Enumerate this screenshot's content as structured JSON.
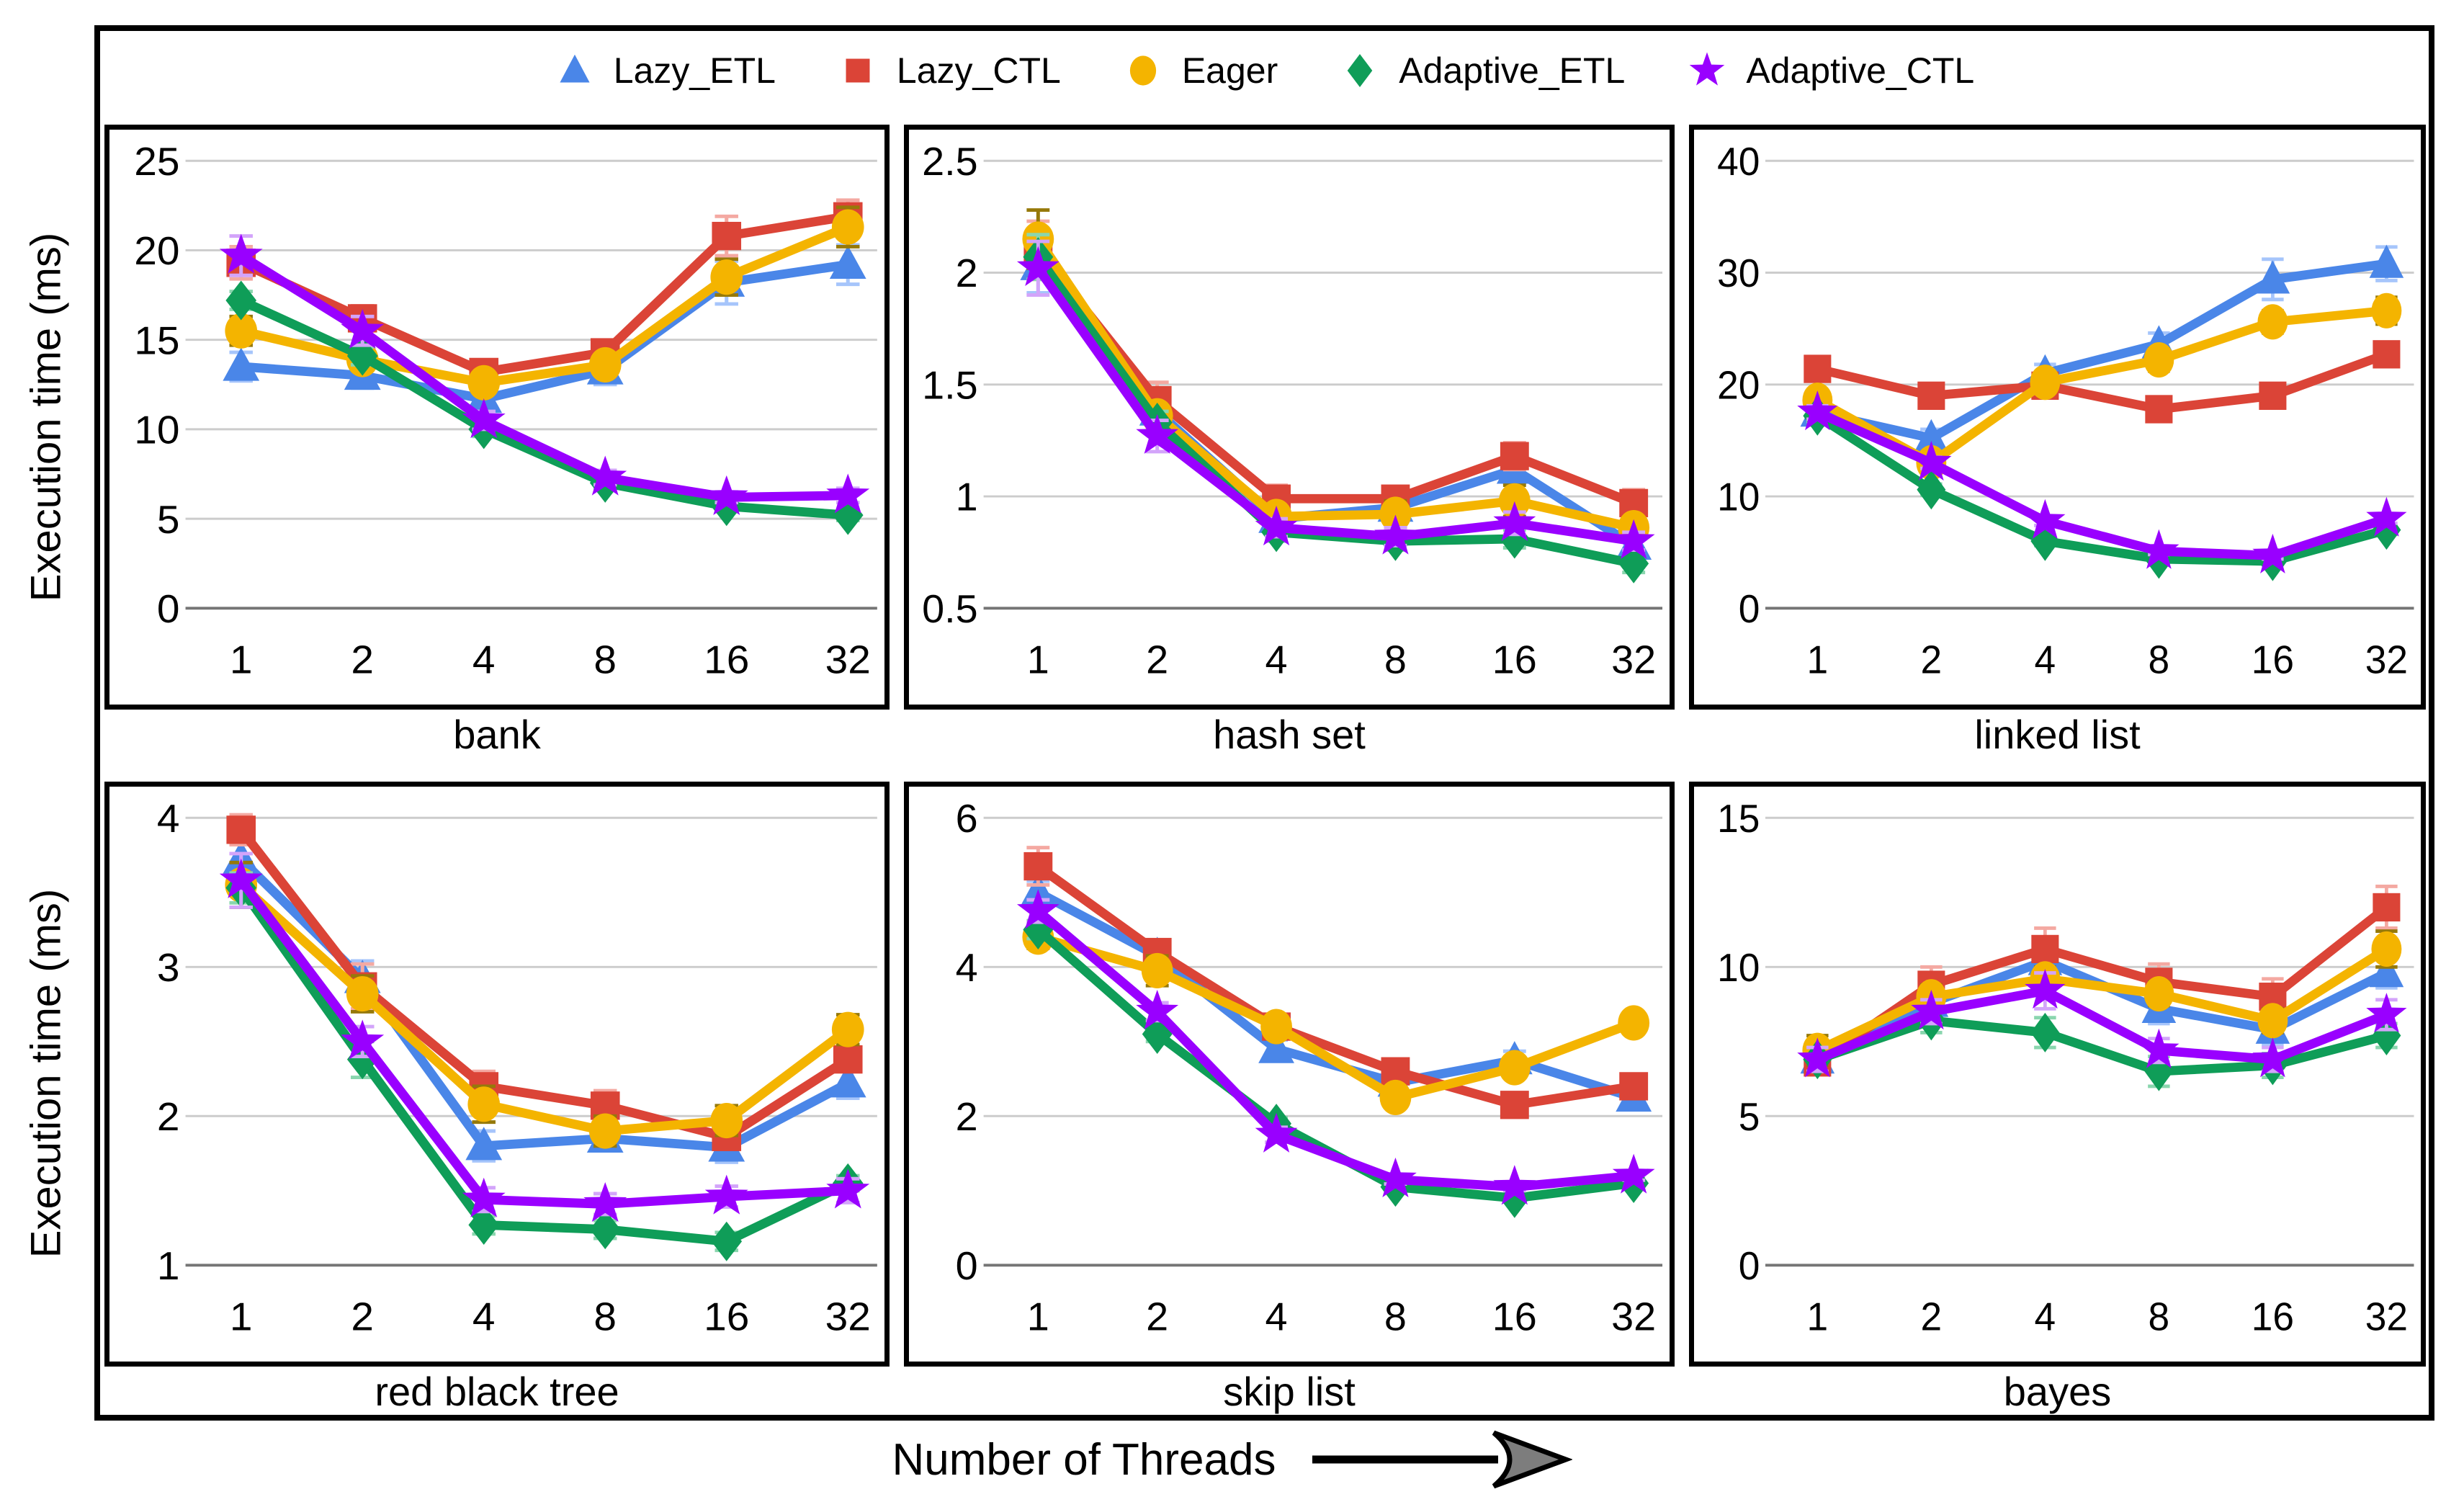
{
  "figure": {
    "ylabel": "Execution time (ms)",
    "xlabel": "Number of Threads",
    "x_categories": [
      "1",
      "2",
      "4",
      "8",
      "16",
      "32"
    ]
  },
  "legend": {
    "items": [
      {
        "label": "Lazy_ETL",
        "marker": "triangle",
        "color": "#4a86e8",
        "err_color": "#a6c5fb"
      },
      {
        "label": "Lazy_CTL",
        "marker": "square",
        "color": "#db4437",
        "err_color": "#f4a9a2"
      },
      {
        "label": "Eager",
        "marker": "circle",
        "color": "#f4b400",
        "err_color": "#96790a"
      },
      {
        "label": "Adaptive_ETL",
        "marker": "diamond",
        "color": "#0f9d58",
        "err_color": "#8ad6ae"
      },
      {
        "label": "Adaptive_CTL",
        "marker": "star",
        "color": "#9900ff",
        "err_color": "#d3a4fa"
      }
    ]
  },
  "chart_data": [
    {
      "type": "line",
      "title": "bank",
      "xlabel": "bank",
      "ylabel": "Execution time (ms)",
      "x": [
        "1",
        "2",
        "4",
        "8",
        "16",
        "32"
      ],
      "ylim": [
        0,
        25
      ],
      "yticks": [
        0,
        5,
        10,
        15,
        20,
        25
      ],
      "grid": true,
      "series": [
        {
          "name": "Lazy_ETL",
          "values": [
            13.5,
            13.0,
            11.7,
            13.3,
            18.2,
            19.2
          ],
          "err": [
            0.8,
            0.7,
            0.5,
            0.8,
            1.2,
            1.1
          ]
        },
        {
          "name": "Lazy_CTL",
          "values": [
            19.3,
            16.2,
            13.2,
            14.3,
            20.8,
            21.9
          ],
          "err": [
            0.9,
            0.7,
            0.6,
            0.6,
            1.1,
            0.9
          ]
        },
        {
          "name": "Eager",
          "values": [
            15.5,
            13.9,
            12.6,
            13.6,
            18.5,
            21.3
          ],
          "err": [
            0.8,
            0.6,
            0.5,
            0.5,
            1.0,
            1.1
          ]
        },
        {
          "name": "Adaptive_ETL",
          "values": [
            17.2,
            14.1,
            10.0,
            7.0,
            5.7,
            5.2
          ],
          "err": [
            0.5,
            0.5,
            0.4,
            0.3,
            0.3,
            0.3
          ]
        },
        {
          "name": "Adaptive_CTL",
          "values": [
            19.7,
            15.5,
            10.5,
            7.3,
            6.2,
            6.3
          ],
          "err": [
            1.1,
            0.8,
            0.5,
            0.4,
            0.3,
            0.4
          ]
        }
      ]
    },
    {
      "type": "line",
      "title": "hash set",
      "xlabel": "hash set",
      "ylabel": "Execution time (ms)",
      "x": [
        "1",
        "2",
        "4",
        "8",
        "16",
        "32"
      ],
      "ylim": [
        0.5,
        2.5
      ],
      "yticks": [
        0.5,
        1,
        1.5,
        2,
        2.5
      ],
      "grid": true,
      "series": [
        {
          "name": "Lazy_ETL",
          "values": [
            2.03,
            1.38,
            0.9,
            0.95,
            1.12,
            0.78
          ],
          "err": [
            0.12,
            0.06,
            0.04,
            0.04,
            0.05,
            0.04
          ]
        },
        {
          "name": "Lazy_CTL",
          "values": [
            2.1,
            1.43,
            0.99,
            0.99,
            1.18,
            0.97
          ],
          "err": [
            0.13,
            0.08,
            0.06,
            0.05,
            0.06,
            0.06
          ]
        },
        {
          "name": "Eager",
          "values": [
            2.15,
            1.36,
            0.91,
            0.92,
            0.98,
            0.86
          ],
          "err": [
            0.13,
            0.05,
            0.04,
            0.06,
            0.07,
            0.04
          ]
        },
        {
          "name": "Adaptive_ETL",
          "values": [
            2.07,
            1.33,
            0.84,
            0.8,
            0.81,
            0.7
          ],
          "err": [
            0.1,
            0.05,
            0.04,
            0.04,
            0.04,
            0.04
          ]
        },
        {
          "name": "Adaptive_CTL",
          "values": [
            2.02,
            1.27,
            0.86,
            0.82,
            0.88,
            0.8
          ],
          "err": [
            0.12,
            0.07,
            0.04,
            0.04,
            0.05,
            0.04
          ]
        }
      ]
    },
    {
      "type": "line",
      "title": "linked list",
      "xlabel": "linked list",
      "ylabel": "Execution time (ms)",
      "x": [
        "1",
        "2",
        "4",
        "8",
        "16",
        "32"
      ],
      "ylim": [
        0,
        40
      ],
      "yticks": [
        0,
        10,
        20,
        30,
        40
      ],
      "grid": true,
      "series": [
        {
          "name": "Lazy_ETL",
          "values": [
            17.5,
            15.2,
            21.0,
            23.6,
            29.4,
            30.8
          ],
          "err": [
            0.8,
            0.8,
            0.8,
            1.0,
            1.8,
            1.5
          ]
        },
        {
          "name": "Lazy_CTL",
          "values": [
            21.4,
            19.0,
            19.9,
            17.8,
            19.0,
            22.7
          ],
          "err": [
            1.0,
            0.9,
            0.9,
            0.9,
            0.9,
            0.9
          ]
        },
        {
          "name": "Eager",
          "values": [
            18.6,
            13.0,
            20.2,
            22.2,
            25.6,
            26.6
          ],
          "err": [
            0.8,
            0.6,
            0.8,
            1.0,
            1.0,
            1.2
          ]
        },
        {
          "name": "Adaptive_ETL",
          "values": [
            17.2,
            10.6,
            6.0,
            4.4,
            4.2,
            7.0
          ],
          "err": [
            0.5,
            0.5,
            0.4,
            0.3,
            0.3,
            0.4
          ]
        },
        {
          "name": "Adaptive_CTL",
          "values": [
            17.5,
            13.0,
            7.8,
            5.1,
            4.7,
            8.0
          ],
          "err": [
            0.6,
            0.5,
            0.4,
            0.3,
            0.3,
            0.4
          ]
        }
      ]
    },
    {
      "type": "line",
      "title": "red black tree",
      "xlabel": "red black tree",
      "ylabel": "Execution time (ms)",
      "x": [
        "1",
        "2",
        "4",
        "8",
        "16",
        "32"
      ],
      "ylim": [
        1,
        4
      ],
      "yticks": [
        1,
        2,
        3,
        4
      ],
      "grid": true,
      "series": [
        {
          "name": "Lazy_ETL",
          "values": [
            3.72,
            2.92,
            1.8,
            1.85,
            1.79,
            2.22
          ],
          "err": [
            0.1,
            0.12,
            0.1,
            0.08,
            0.1,
            0.1
          ]
        },
        {
          "name": "Lazy_CTL",
          "values": [
            3.92,
            2.87,
            2.2,
            2.07,
            1.86,
            2.38
          ],
          "err": [
            0.1,
            0.15,
            0.1,
            0.1,
            0.05,
            0.08
          ]
        },
        {
          "name": "Eager",
          "values": [
            3.55,
            2.82,
            2.08,
            1.9,
            1.97,
            2.58
          ],
          "err": [
            0.15,
            0.12,
            0.12,
            0.1,
            0.1,
            0.1
          ]
        },
        {
          "name": "Adaptive_ETL",
          "values": [
            3.53,
            2.38,
            1.27,
            1.24,
            1.16,
            1.55
          ],
          "err": [
            0.1,
            0.12,
            0.06,
            0.06,
            0.06,
            0.05
          ]
        },
        {
          "name": "Adaptive_CTL",
          "values": [
            3.58,
            2.5,
            1.44,
            1.41,
            1.46,
            1.5
          ],
          "err": [
            0.18,
            0.1,
            0.08,
            0.07,
            0.07,
            0.08
          ]
        }
      ]
    },
    {
      "type": "line",
      "title": "skip list",
      "xlabel": "skip list",
      "ylabel": "Execution time (ms)",
      "x": [
        "1",
        "2",
        "4",
        "8",
        "16",
        "32"
      ],
      "ylim": [
        0,
        6
      ],
      "yticks": [
        0,
        2,
        4,
        6
      ],
      "grid": true,
      "series": [
        {
          "name": "Lazy_ETL",
          "values": [
            5.0,
            4.15,
            2.9,
            2.45,
            2.75,
            2.25
          ],
          "err": [
            0.15,
            0.15,
            0.12,
            0.08,
            0.12,
            0.08
          ]
        },
        {
          "name": "Lazy_CTL",
          "values": [
            5.35,
            4.2,
            3.2,
            2.6,
            2.15,
            2.4
          ],
          "err": [
            0.25,
            0.15,
            0.1,
            0.1,
            0.08,
            0.1
          ]
        },
        {
          "name": "Eager",
          "values": [
            4.4,
            3.95,
            3.2,
            2.25,
            2.65,
            3.25
          ],
          "err": [
            0.15,
            0.2,
            0.1,
            0.1,
            0.08,
            0.1
          ]
        },
        {
          "name": "Adaptive_ETL",
          "values": [
            4.5,
            3.1,
            1.9,
            1.05,
            0.9,
            1.1
          ],
          "err": [
            0.12,
            0.1,
            0.08,
            0.06,
            0.05,
            0.06
          ]
        },
        {
          "name": "Adaptive_CTL",
          "values": [
            4.75,
            3.4,
            1.75,
            1.15,
            1.05,
            1.2
          ],
          "err": [
            0.15,
            0.12,
            0.1,
            0.06,
            0.05,
            0.06
          ]
        }
      ]
    },
    {
      "type": "line",
      "title": "bayes",
      "xlabel": "bayes",
      "ylabel": "Execution time (ms)",
      "x": [
        "1",
        "2",
        "4",
        "8",
        "16",
        "32"
      ],
      "ylim": [
        0,
        15
      ],
      "yticks": [
        0,
        5,
        10,
        15
      ],
      "grid": true,
      "series": [
        {
          "name": "Lazy_ETL",
          "values": [
            6.9,
            8.8,
            10.2,
            8.6,
            7.9,
            9.8
          ],
          "err": [
            0.5,
            0.4,
            0.5,
            0.5,
            0.5,
            0.5
          ]
        },
        {
          "name": "Lazy_CTL",
          "values": [
            6.8,
            9.4,
            10.6,
            9.5,
            9.0,
            12.0
          ],
          "err": [
            0.4,
            0.6,
            0.7,
            0.6,
            0.6,
            0.7
          ]
        },
        {
          "name": "Eager",
          "values": [
            7.2,
            9.0,
            9.6,
            9.1,
            8.2,
            10.6
          ],
          "err": [
            0.5,
            0.4,
            0.4,
            0.4,
            0.4,
            0.6
          ]
        },
        {
          "name": "Adaptive_ETL",
          "values": [
            6.9,
            8.2,
            7.8,
            6.5,
            6.7,
            7.7
          ],
          "err": [
            0.4,
            0.4,
            0.5,
            0.5,
            0.4,
            0.4
          ]
        },
        {
          "name": "Adaptive_CTL",
          "values": [
            6.9,
            8.5,
            9.2,
            7.2,
            6.9,
            8.4
          ],
          "err": [
            0.4,
            0.4,
            0.6,
            0.4,
            0.4,
            0.5
          ]
        }
      ]
    }
  ]
}
